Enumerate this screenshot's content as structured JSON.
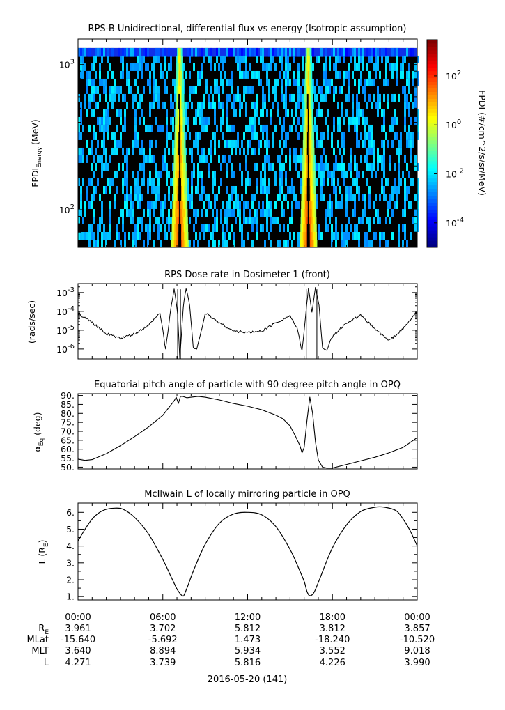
{
  "panel1": {
    "title": "RPS-B  Unidirectional, differential flux vs energy (Isotropic assumption)",
    "ylabel": "FPDI",
    "ylabel_sub": "Energy",
    "ylabel_unit": "(MeV)",
    "colorbar_label": "FPDI (#/cm^2/s/sr/MeV)"
  },
  "chart_data": [
    {
      "type": "heatmap",
      "title": "RPS-B  Unidirectional, differential flux vs energy (Isotropic assumption)",
      "ylabel": "FPDI Energy (MeV)",
      "yscale": "log",
      "ylim": [
        55,
        1500
      ],
      "y_ticks": [
        {
          "value": 100,
          "base": "10",
          "exp": "2"
        },
        {
          "value": 1000,
          "base": "10",
          "exp": "3"
        }
      ],
      "x_time_range": [
        "00:00",
        "24:00"
      ],
      "features": [
        {
          "description_hours": [
            6.6,
            7.8
          ],
          "energy_range": [
            55,
            1300
          ]
        },
        {
          "description_hours": [
            15.7,
            16.9
          ],
          "energy_range": [
            55,
            1300
          ]
        }
      ],
      "colorbar": {
        "label": "FPDI (#/cm^2/s/sr/MeV)",
        "scale": "log",
        "range": [
          1e-05,
          3000
        ],
        "ticks": [
          {
            "base": "10",
            "exp": "2",
            "value": 100
          },
          {
            "base": "10",
            "exp": "0",
            "value": 1
          },
          {
            "base": "10",
            "exp": "-2",
            "value": 0.01
          },
          {
            "base": "10",
            "exp": "-4",
            "value": 0.0001
          }
        ]
      }
    },
    {
      "type": "line",
      "title": "RPS  Dose rate in Dosimeter 1 (front)",
      "ylabel": "(rads/sec)",
      "yscale": "log",
      "ylim": [
        3e-07,
        0.003
      ],
      "y_ticks": [
        {
          "value": 1e-06,
          "base": "10",
          "exp": "-6"
        },
        {
          "value": 1e-05,
          "base": "10",
          "exp": "-5"
        },
        {
          "value": 0.0001,
          "base": "10",
          "exp": "-4"
        },
        {
          "value": 0.001,
          "base": "10",
          "exp": "-3"
        }
      ],
      "x_hours": [
        0,
        1,
        2,
        3,
        4,
        5,
        5.8,
        6.0,
        6.2,
        6.5,
        6.8,
        7.05,
        7.2,
        7.45,
        7.65,
        7.9,
        8.15,
        8.4,
        9,
        10,
        11,
        12,
        13,
        14,
        15,
        15.5,
        15.85,
        16.1,
        16.3,
        16.55,
        16.8,
        17.05,
        17.3,
        17.6,
        18,
        19,
        20,
        21,
        22,
        23,
        24
      ],
      "values": [
        8e-05,
        2.5e-05,
        6.5e-06,
        3.7e-06,
        6.2e-06,
        1.8e-05,
        8e-05,
        1e-05,
        9e-07,
        6e-05,
        0.0018,
        7e-05,
        3e-07,
        0.0002,
        0.0018,
        0.00022,
        1.2e-06,
        9e-07,
        8e-05,
        2.5e-05,
        9e-06,
        7.5e-06,
        9e-06,
        2.5e-05,
        6e-05,
        1.2e-05,
        8e-07,
        5e-05,
        0.0018,
        0.0001,
        0.0018,
        0.0002,
        1.2e-06,
        9e-07,
        4.5e-06,
        2.5e-05,
        6e-05,
        1.2e-05,
        2.8e-06,
        1.2e-05,
        0.0001
      ]
    },
    {
      "type": "line",
      "title": "Equatorial pitch angle of particle with 90 degree pitch angle in OPQ",
      "ylabel": "α Eq (deg)",
      "ylim": [
        49,
        91
      ],
      "y_ticks": [
        50,
        55,
        60,
        65,
        70,
        75,
        80,
        85,
        90
      ],
      "x_hours": [
        0,
        0.5,
        1,
        2,
        3,
        4,
        5,
        6,
        6.5,
        6.8,
        6.95,
        7.1,
        7.25,
        7.4,
        7.7,
        8,
        8.5,
        9,
        10,
        11,
        12,
        13,
        14,
        14.5,
        15,
        15.4,
        15.7,
        15.85,
        16.0,
        16.2,
        16.4,
        16.6,
        16.8,
        17.0,
        17.3,
        17.6,
        18,
        19,
        20,
        21,
        22,
        23,
        24
      ],
      "values": [
        54.5,
        53.8,
        54.2,
        57.5,
        62,
        67,
        72.5,
        79,
        84,
        87,
        89,
        85.5,
        89.5,
        89.5,
        88.7,
        89,
        89.5,
        89,
        87.5,
        85.5,
        84,
        82,
        79,
        77,
        73,
        67,
        62,
        58,
        61,
        76,
        89,
        80,
        64,
        54,
        50,
        49.5,
        49.5,
        51.5,
        53.5,
        55.5,
        58,
        61,
        66.5
      ]
    },
    {
      "type": "line",
      "title": "McIlwain L of locally mirroring particle in OPQ",
      "ylabel": "L (R E)",
      "ylim": [
        0.8,
        6.55
      ],
      "y_ticks": [
        1,
        2,
        3,
        4,
        5,
        6
      ],
      "x_hours": [
        0,
        0.5,
        1,
        1.5,
        2,
        2.6,
        3.2,
        4,
        5,
        6,
        6.6,
        7.0,
        7.3,
        7.4,
        7.5,
        7.8,
        8.2,
        9,
        10,
        11,
        12,
        13,
        14,
        15,
        15.6,
        16.0,
        16.2,
        16.4,
        16.7,
        17.1,
        18,
        19,
        20,
        21,
        21.7,
        22.5,
        23,
        23.5,
        24
      ],
      "values": [
        4.3,
        5.0,
        5.6,
        5.98,
        6.18,
        6.25,
        6.18,
        5.7,
        4.7,
        3.2,
        2.15,
        1.45,
        1.1,
        1.05,
        1.08,
        1.7,
        2.6,
        4.1,
        5.35,
        5.9,
        6.0,
        5.85,
        5.15,
        3.8,
        2.7,
        1.9,
        1.3,
        1.05,
        1.25,
        2.05,
        3.9,
        5.25,
        6.05,
        6.3,
        6.3,
        6.1,
        5.6,
        4.9,
        4.0
      ]
    }
  ],
  "panel2": {
    "title": "RPS  Dose rate in Dosimeter 1 (front)",
    "ylabel": "(rads/sec)"
  },
  "panel3": {
    "title": "Equatorial pitch angle of particle with 90 degree pitch angle in OPQ",
    "ylabel_main": "α",
    "ylabel_sub": "Eq",
    "ylabel_unit": "(deg)"
  },
  "panel4": {
    "title": "McIlwain L of locally mirroring particle in OPQ",
    "ylabel_main": "L (R",
    "ylabel_sub": "E",
    "ylabel_tail": ")"
  },
  "ephemeris": {
    "time_labels": [
      "00:00",
      "06:00",
      "12:00",
      "18:00",
      "00:00"
    ],
    "rows": [
      {
        "label": "R",
        "label_sub": "E",
        "values": [
          "3.961",
          "3.702",
          "5.812",
          "3.812",
          "3.857"
        ]
      },
      {
        "label": "MLat",
        "label_sub": "",
        "values": [
          "-15.640",
          "-5.692",
          "1.473",
          "-18.240",
          "-10.520"
        ]
      },
      {
        "label": "MLT",
        "label_sub": "",
        "values": [
          "3.640",
          "8.894",
          "5.934",
          "3.552",
          "9.018"
        ]
      },
      {
        "label": "L",
        "label_sub": "",
        "values": [
          "4.271",
          "3.739",
          "5.816",
          "4.226",
          "3.990"
        ]
      }
    ],
    "date": "2016-05-20 (141)"
  }
}
